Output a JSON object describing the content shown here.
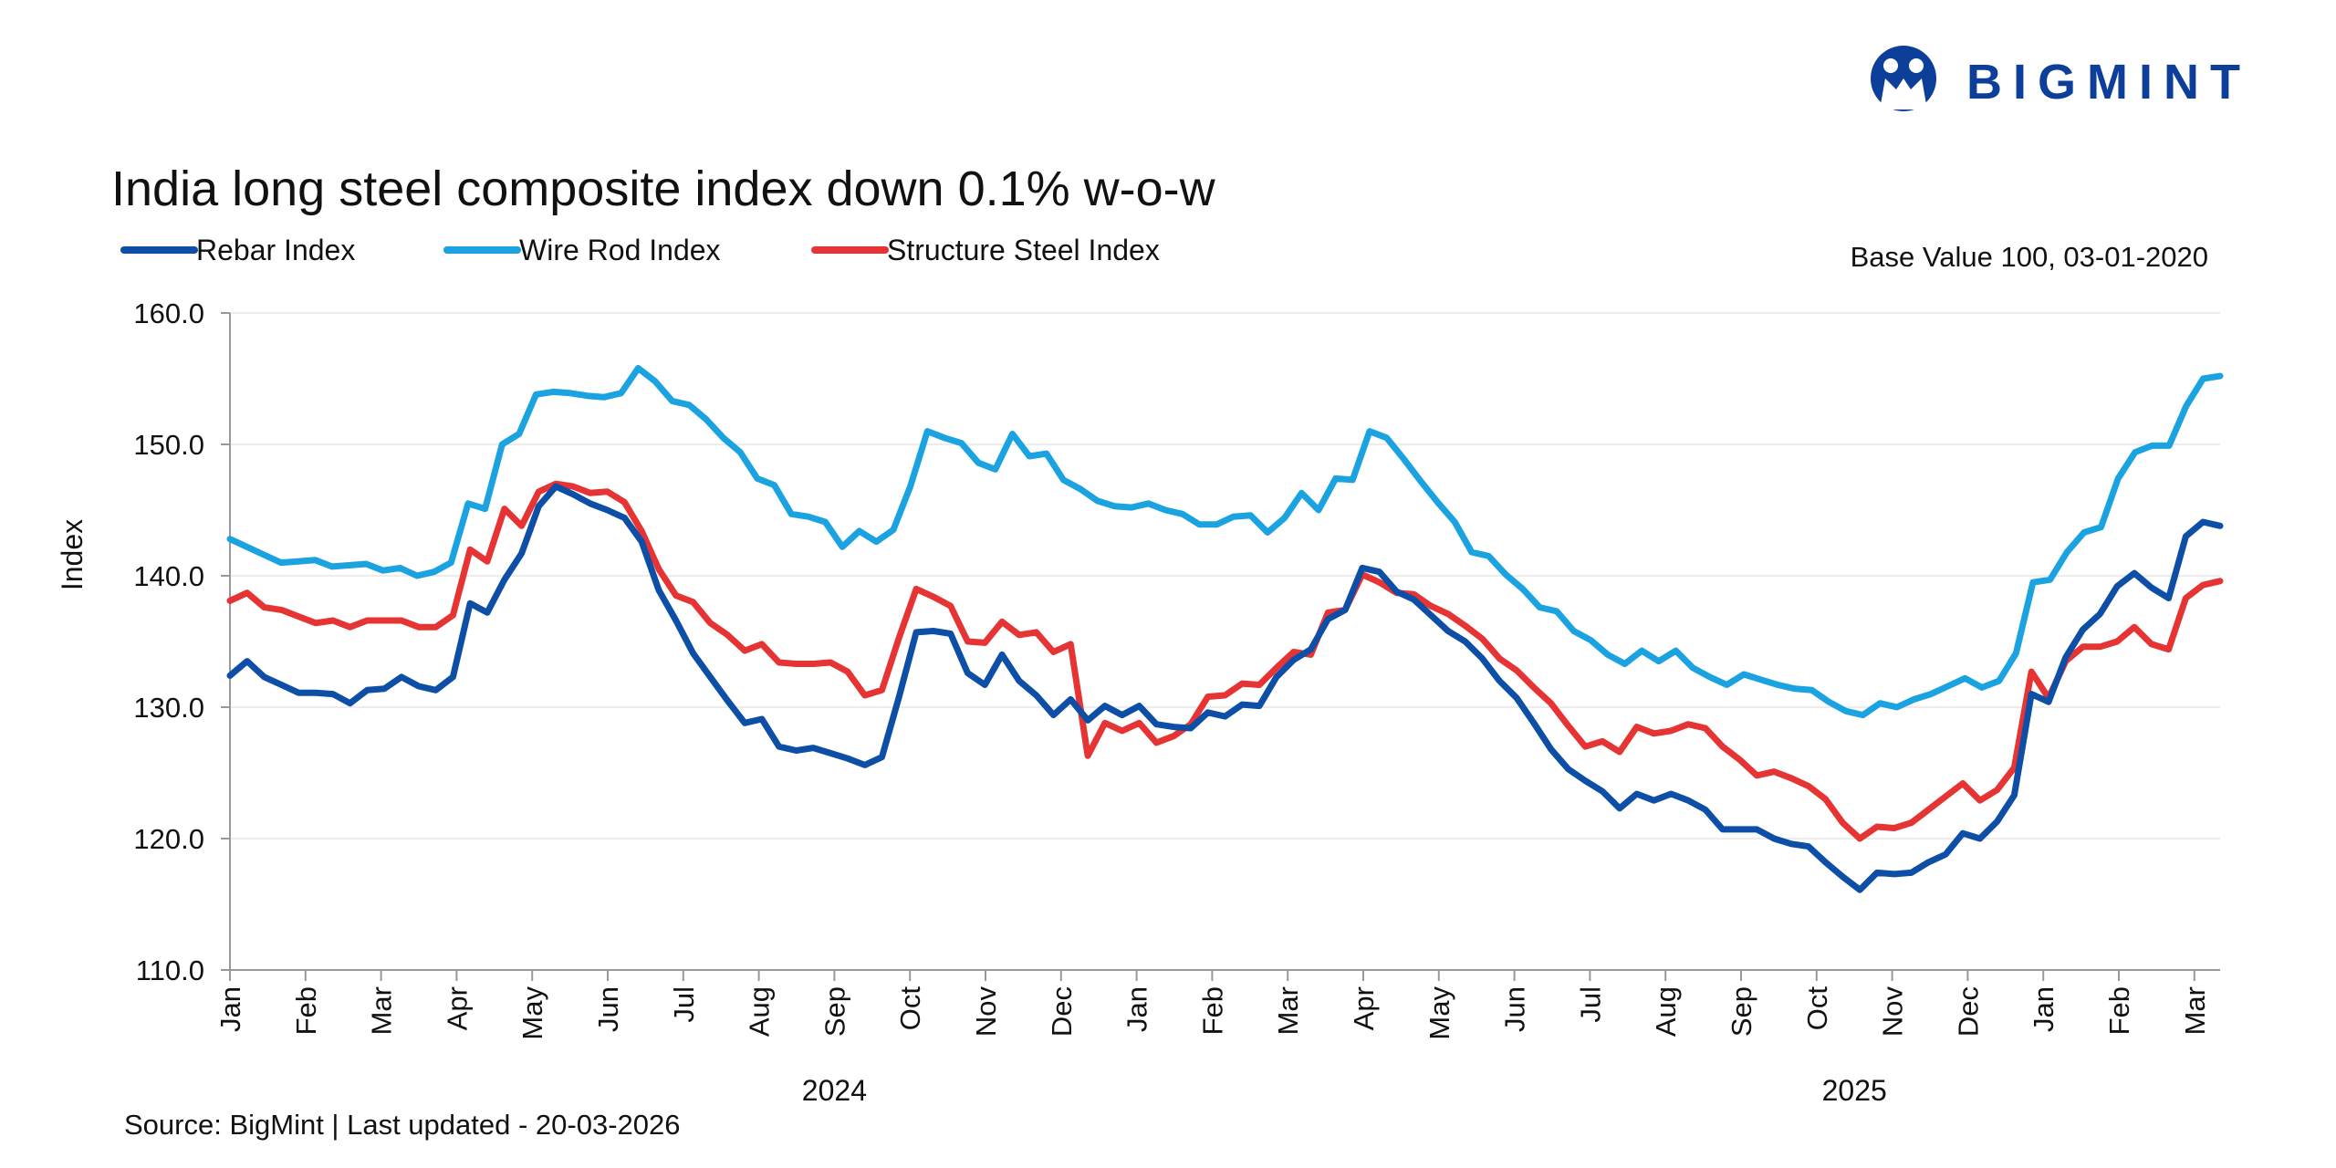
{
  "brand": {
    "name": "BIGMINT",
    "color": "#0d3f9a"
  },
  "header": {
    "title": "India long steel composite index down 0.1% w-o-w",
    "base_note": "Base Value 100, 03-01-2020"
  },
  "footer": {
    "source": "Source: BigMint | Last updated - 20-03-2026"
  },
  "chart_data": {
    "type": "line",
    "title": "India long steel composite index down 0.1% w-o-w",
    "xlabel": "",
    "ylabel": "Index",
    "ylim": [
      110,
      160
    ],
    "yticks": [
      "110.0",
      "120.0",
      "130.0",
      "140.0",
      "150.0",
      "160.0"
    ],
    "x_ticks": [
      "Jan",
      "Feb",
      "Mar",
      "Apr",
      "May",
      "Jun",
      "Jul",
      "Aug",
      "Sep",
      "Oct",
      "Nov",
      "Dec",
      "Jan",
      "Feb",
      "Mar",
      "Apr",
      "May",
      "Jun",
      "Jul",
      "Aug",
      "Sep",
      "Oct",
      "Nov",
      "Dec",
      "Jan",
      "Feb",
      "Mar"
    ],
    "year_labels": [
      {
        "label": "2024",
        "tick_index": 8
      },
      {
        "label": "2025",
        "tick_index": 21.5
      }
    ],
    "grid": "horizontal",
    "legend_position": "top-left",
    "series": [
      {
        "name": "Rebar Index",
        "color": "#0d4ea6",
        "values": [
          132.4,
          133.5,
          132.3,
          131.7,
          131.1,
          131.1,
          131.0,
          130.3,
          131.3,
          131.4,
          132.3,
          131.6,
          131.3,
          132.3,
          137.9,
          137.2,
          139.7,
          141.7,
          145.3,
          146.8,
          146.2,
          145.5,
          145.0,
          144.4,
          142.6,
          138.9,
          136.6,
          134.1,
          132.3,
          130.5,
          128.8,
          129.1,
          127.0,
          126.7,
          126.9,
          126.5,
          126.1,
          125.6,
          126.2,
          130.8,
          135.7,
          135.8,
          135.6,
          132.6,
          131.7,
          134.0,
          132.0,
          130.9,
          129.4,
          130.6,
          129.0,
          130.1,
          129.4,
          130.1,
          128.7,
          128.5,
          128.4,
          129.6,
          129.3,
          130.2,
          130.1,
          132.3,
          133.6,
          134.4,
          136.7,
          137.4,
          140.6,
          140.3,
          138.8,
          138.2,
          137.0,
          135.8,
          135.0,
          133.7,
          132.0,
          130.7,
          128.8,
          126.8,
          125.3,
          124.4,
          123.6,
          122.3,
          123.4,
          122.9,
          123.4,
          122.9,
          122.2,
          120.7,
          120.7,
          120.7,
          120.0,
          119.6,
          119.4,
          118.2,
          117.1,
          116.1,
          117.4,
          117.3,
          117.4,
          118.2,
          118.8,
          120.4,
          120.0,
          121.3,
          123.3,
          131.0,
          130.4,
          133.8,
          135.9,
          137.1,
          139.2,
          140.2,
          139.1,
          138.3,
          143.0,
          144.1,
          143.8
        ]
      },
      {
        "name": "Wire Rod Index",
        "color": "#1aa3e0",
        "values": [
          142.8,
          142.2,
          141.6,
          141.0,
          141.1,
          141.2,
          140.7,
          140.8,
          140.9,
          140.4,
          140.6,
          140.0,
          140.3,
          141.0,
          145.5,
          145.1,
          150.0,
          150.8,
          153.8,
          154.0,
          153.9,
          153.7,
          153.6,
          153.9,
          155.8,
          154.8,
          153.3,
          153.0,
          151.9,
          150.5,
          149.4,
          147.4,
          146.9,
          144.7,
          144.5,
          144.1,
          142.2,
          143.4,
          142.6,
          143.5,
          146.8,
          151.0,
          150.5,
          150.1,
          148.6,
          148.1,
          150.8,
          149.1,
          149.3,
          147.3,
          146.6,
          145.7,
          145.3,
          145.2,
          145.5,
          145.0,
          144.7,
          143.9,
          143.9,
          144.5,
          144.6,
          143.3,
          144.4,
          146.3,
          145.0,
          147.4,
          147.3,
          151.0,
          150.5,
          148.9,
          147.2,
          145.6,
          144.1,
          141.8,
          141.5,
          140.1,
          139.0,
          137.6,
          137.3,
          135.8,
          135.1,
          134.0,
          133.3,
          134.3,
          133.5,
          134.3,
          133.0,
          132.3,
          131.7,
          132.5,
          132.1,
          131.7,
          131.4,
          131.3,
          130.4,
          129.7,
          129.4,
          130.3,
          130.0,
          130.6,
          131.0,
          131.6,
          132.2,
          131.5,
          132.0,
          134.1,
          139.5,
          139.7,
          141.8,
          143.3,
          143.7,
          147.4,
          149.4,
          149.9,
          149.9,
          152.9,
          155.0,
          155.2
        ]
      },
      {
        "name": "Structure Steel Index",
        "color": "#e63333",
        "values": [
          138.1,
          138.7,
          137.6,
          137.4,
          136.9,
          136.4,
          136.6,
          136.1,
          136.6,
          136.6,
          136.6,
          136.1,
          136.1,
          137.0,
          142.0,
          141.1,
          145.1,
          143.8,
          146.4,
          147.0,
          146.8,
          146.3,
          146.4,
          145.6,
          143.4,
          140.5,
          138.5,
          138.0,
          136.4,
          135.5,
          134.3,
          134.8,
          133.4,
          133.3,
          133.3,
          133.4,
          132.7,
          130.9,
          131.3,
          135.3,
          139.0,
          138.4,
          137.7,
          135.0,
          134.9,
          136.5,
          135.5,
          135.7,
          134.2,
          134.8,
          126.3,
          128.8,
          128.2,
          128.8,
          127.3,
          127.8,
          128.7,
          130.8,
          130.9,
          131.8,
          131.7,
          133.0,
          134.2,
          134.0,
          137.2,
          137.4,
          140.1,
          139.5,
          138.7,
          138.6,
          137.7,
          137.1,
          136.2,
          135.2,
          133.7,
          132.8,
          131.5,
          130.3,
          128.6,
          127.0,
          127.4,
          126.6,
          128.5,
          128.0,
          128.2,
          128.7,
          128.4,
          127.0,
          126.0,
          124.8,
          125.1,
          124.6,
          124.0,
          123.0,
          121.2,
          120.0,
          120.9,
          120.8,
          121.2,
          122.2,
          123.2,
          124.2,
          122.9,
          123.7,
          125.4,
          132.7,
          130.7,
          133.5,
          134.6,
          134.6,
          135.0,
          136.1,
          134.8,
          134.4,
          138.3,
          139.3,
          139.6
        ]
      }
    ]
  }
}
